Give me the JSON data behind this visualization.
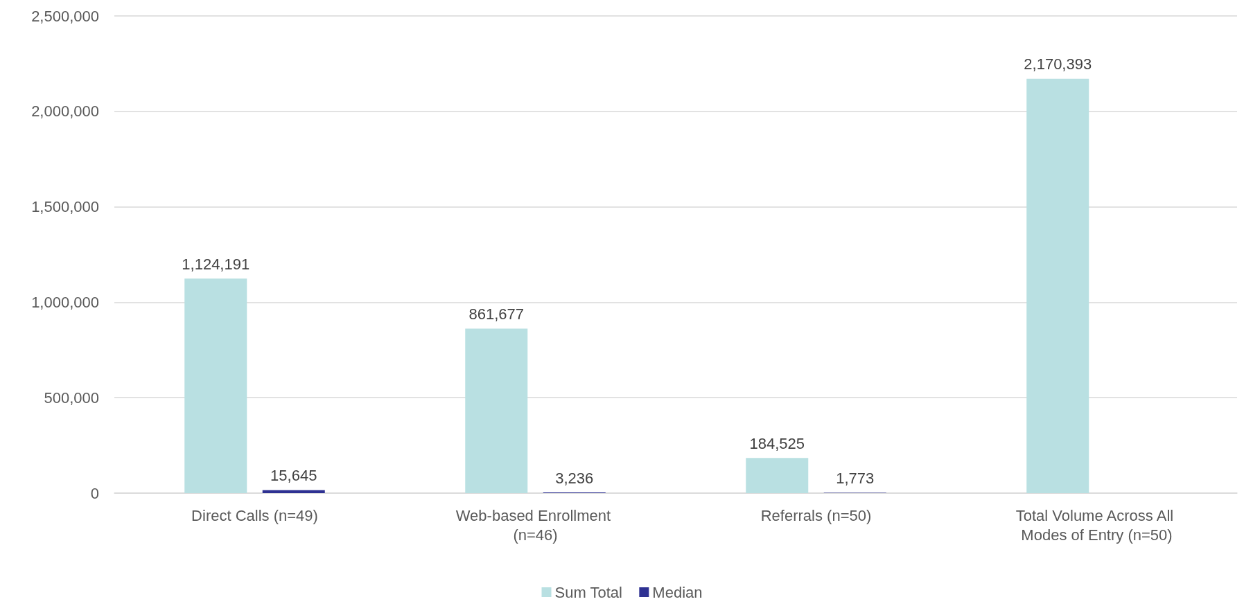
{
  "chart_data": {
    "type": "bar",
    "categories": [
      "Direct Calls (n=49)",
      "Web-based Enrollment (n=46)",
      "Referrals (n=50)",
      "Total Volume Across All Modes of Entry (n=50)"
    ],
    "series": [
      {
        "name": "Sum Total",
        "color": "#b9e0e2",
        "values": [
          1124191,
          861677,
          184525,
          2170393
        ],
        "value_labels": [
          "1,124,191",
          "861,677",
          "184,525",
          "2,170,393"
        ]
      },
      {
        "name": "Median",
        "color": "#2e3192",
        "values": [
          15645,
          3236,
          1773,
          null
        ],
        "value_labels": [
          "15,645",
          "3,236",
          "1,773",
          null
        ]
      }
    ],
    "ylim": [
      0,
      2500000
    ],
    "yticks": [
      0,
      {
        "value": 500000,
        "label": "500,000"
      },
      {
        "value": 1000000,
        "label": "1,000,000"
      },
      {
        "value": 1500000,
        "label": "1,500,000"
      },
      {
        "value": 2000000,
        "label": "2,000,000"
      },
      {
        "value": 2500000,
        "label": "2,500,000"
      }
    ],
    "grid": "y",
    "legend": "bottom"
  }
}
